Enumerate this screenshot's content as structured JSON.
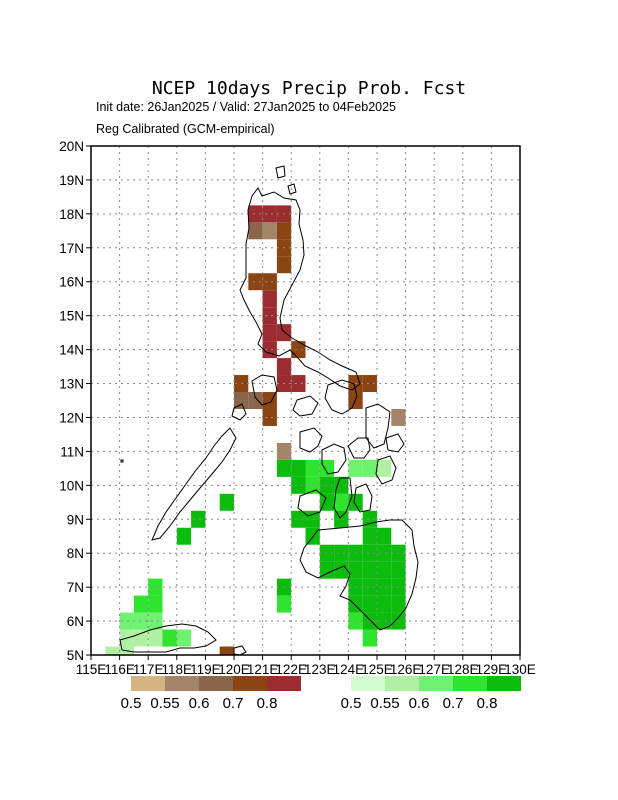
{
  "title": "NCEP 10days Precip Prob. Fcst",
  "subtitle_dates": "Init date: 26Jan2025 / Valid: 27Jan2025 to 04Feb2025",
  "subtitle_method": "Reg Calibrated (GCM-empirical)",
  "map_data": {
    "projection": "lat-lon",
    "lon_range": [
      115,
      130
    ],
    "lat_range": [
      5,
      20
    ],
    "grid_step_deg": 0.5,
    "gridlines": true,
    "x_tick_labels": [
      "115E",
      "116E",
      "117E",
      "118E",
      "119E",
      "120E",
      "121E",
      "122E",
      "123E",
      "124E",
      "125E",
      "126E",
      "127E",
      "128E",
      "129E",
      "130E"
    ],
    "y_tick_labels": [
      "5N",
      "6N",
      "7N",
      "8N",
      "9N",
      "10N",
      "11N",
      "12N",
      "13N",
      "14N",
      "15N",
      "16N",
      "17N",
      "18N",
      "19N",
      "20N"
    ],
    "colors": {
      "dry": [
        "#d4b483",
        "#a5856a",
        "#8a6549",
        "#8b4513",
        "#9b2d30"
      ],
      "wet": [
        "#d5fbd0",
        "#b1f0a4",
        "#6ff270",
        "#2ee42e",
        "#0cbc0c"
      ]
    },
    "dry_cells": [
      [
        120.75,
        18
      ],
      [
        121.25,
        18
      ],
      [
        121.75,
        18
      ],
      [
        120.75,
        17.5
      ],
      [
        121.25,
        17.5
      ],
      [
        121.75,
        17.5
      ],
      [
        121.75,
        17
      ],
      [
        121.75,
        16.5
      ],
      [
        120.75,
        16
      ],
      [
        121.25,
        16
      ],
      [
        121.25,
        15.5
      ],
      [
        121.25,
        15
      ],
      [
        121.25,
        14.5
      ],
      [
        121.75,
        14.5
      ],
      [
        121.25,
        14
      ],
      [
        122.25,
        14
      ],
      [
        121.75,
        13.5
      ],
      [
        121.75,
        13
      ],
      [
        122.25,
        13
      ],
      [
        120.25,
        13
      ],
      [
        120.25,
        12.5
      ],
      [
        120.75,
        12.5
      ],
      [
        121.25,
        12.5
      ],
      [
        121.25,
        12
      ],
      [
        124.25,
        13
      ],
      [
        124.75,
        13
      ],
      [
        124.25,
        12.5
      ],
      [
        125.75,
        12
      ],
      [
        121.75,
        11
      ],
      [
        119.75,
        5
      ]
    ],
    "dry_levels": [
      4,
      4,
      4,
      2,
      1,
      3,
      3,
      3,
      3,
      3,
      4,
      4,
      4,
      4,
      4,
      3,
      4,
      4,
      4,
      3,
      2,
      2,
      3,
      3,
      3,
      3,
      3,
      1,
      1,
      3
    ],
    "wet_cells": [
      [
        121.75,
        10.5
      ],
      [
        122.25,
        10.5
      ],
      [
        122.75,
        10.5
      ],
      [
        123.25,
        10.5
      ],
      [
        124.25,
        10.5
      ],
      [
        124.75,
        10.5
      ],
      [
        125.25,
        10.5
      ],
      [
        122.25,
        10
      ],
      [
        122.75,
        10
      ],
      [
        123.25,
        10
      ],
      [
        123.75,
        10
      ],
      [
        123.25,
        9.5
      ],
      [
        123.75,
        9.5
      ],
      [
        124.25,
        9.5
      ],
      [
        122.25,
        9
      ],
      [
        122.75,
        9
      ],
      [
        123.75,
        9
      ],
      [
        124.75,
        9
      ],
      [
        122.75,
        8.5
      ],
      [
        124.75,
        8.5
      ],
      [
        125.25,
        8.5
      ],
      [
        123.25,
        8
      ],
      [
        123.75,
        8
      ],
      [
        124.25,
        8
      ],
      [
        124.75,
        8
      ],
      [
        125.25,
        8
      ],
      [
        125.75,
        8
      ],
      [
        123.25,
        7.5
      ],
      [
        123.75,
        7.5
      ],
      [
        124.25,
        7.5
      ],
      [
        124.75,
        7.5
      ],
      [
        125.25,
        7.5
      ],
      [
        125.75,
        7.5
      ],
      [
        121.75,
        7
      ],
      [
        124.25,
        7
      ],
      [
        124.75,
        7
      ],
      [
        125.25,
        7
      ],
      [
        125.75,
        7
      ],
      [
        121.75,
        6.5
      ],
      [
        124.25,
        6.5
      ],
      [
        124.75,
        6.5
      ],
      [
        125.25,
        6.5
      ],
      [
        125.75,
        6.5
      ],
      [
        124.25,
        6
      ],
      [
        124.75,
        6
      ],
      [
        125.25,
        6
      ],
      [
        125.75,
        6
      ],
      [
        124.75,
        5.5
      ],
      [
        119.75,
        9.5
      ],
      [
        118.75,
        9
      ],
      [
        118.25,
        8.5
      ],
      [
        117.25,
        7
      ],
      [
        116.75,
        6.5
      ],
      [
        117.25,
        6.5
      ],
      [
        116.25,
        6
      ],
      [
        116.75,
        6
      ],
      [
        117.25,
        6
      ],
      [
        116.25,
        5.5
      ],
      [
        116.75,
        5.5
      ],
      [
        117.25,
        5.5
      ],
      [
        117.75,
        5.5
      ],
      [
        118.25,
        5.5
      ],
      [
        115.75,
        5
      ],
      [
        116.25,
        5
      ]
    ],
    "wet_levels": [
      4,
      4,
      3,
      3,
      2,
      2,
      1,
      4,
      3,
      4,
      4,
      4,
      3,
      4,
      4,
      4,
      4,
      4,
      4,
      4,
      4,
      4,
      4,
      4,
      4,
      4,
      4,
      4,
      4,
      4,
      4,
      4,
      4,
      4,
      4,
      4,
      4,
      4,
      3,
      4,
      4,
      4,
      4,
      3,
      4,
      4,
      4,
      3,
      4,
      4,
      4,
      3,
      3,
      3,
      2,
      2,
      2,
      1,
      1,
      1,
      3,
      2,
      1,
      1
    ],
    "legend": {
      "dry_labels": [
        "0.5",
        "0.55",
        "0.6",
        "0.7",
        "0.8"
      ],
      "wet_labels": [
        "0.5",
        "0.55",
        "0.6",
        "0.7",
        "0.8"
      ]
    }
  }
}
